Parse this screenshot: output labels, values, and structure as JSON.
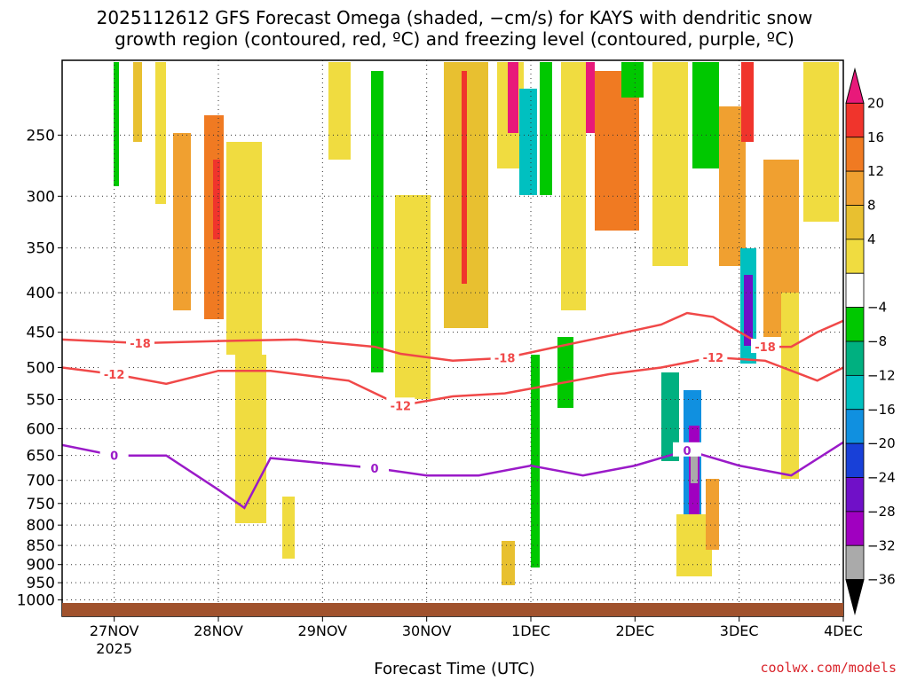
{
  "chart_data": {
    "type": "heatmap",
    "title_line1": "2025112612 GFS Forecast Omega (shaded, −cm/s) for KAYS with dendritic snow",
    "title_line2": "growth region (contoured, red, ºC) and freezing level (contoured, purple, ºC)",
    "xlabel": "Forecast Time (UTC)",
    "ylabel": "",
    "credit": "coolwx.com/models",
    "y_scale": "log-pressure (hPa), inverted",
    "y_ticks": [
      "250",
      "300",
      "350",
      "400",
      "450",
      "500",
      "550",
      "600",
      "650",
      "700",
      "750",
      "800",
      "850",
      "900",
      "950",
      "1000"
    ],
    "x_ticks": [
      "27NOV",
      "28NOV",
      "29NOV",
      "30NOV",
      "1DEC",
      "2DEC",
      "3DEC",
      "4DEC"
    ],
    "x_sublabel": "2025",
    "grid": true,
    "colorbar": {
      "labels": [
        "20",
        "16",
        "12",
        "8",
        "4",
        "−4",
        "−8",
        "−12",
        "−16",
        "−20",
        "−24",
        "−28",
        "−32",
        "−36"
      ],
      "colors": [
        "#e8197a",
        "#f0342c",
        "#f07a22",
        "#f0a030",
        "#e8c030",
        "#f0dc40",
        "#ffffff",
        "#00c800",
        "#00b080",
        "#00c0c0",
        "#1090e0",
        "#1840d8",
        "#7010c8",
        "#a000c0",
        "#aaaaaa",
        "#000000"
      ]
    },
    "contours": [
      {
        "name": "-18",
        "color": "#f04848",
        "x": [
          "2025-11-26 12",
          "2025-11-27 06",
          "2025-11-28 00",
          "2025-11-28 18",
          "2025-11-29 12",
          "2025-11-29 18",
          "2025-11-30 06",
          "2025-11-30 18",
          "2025-12-01 06",
          "2025-12-01 18",
          "2025-12-02 06",
          "2025-12-02 12",
          "2025-12-02 18",
          "2025-12-03 06",
          "2025-12-03 12",
          "2025-12-03 18",
          "2025-12-04 00"
        ],
        "y": [
          460,
          465,
          462,
          460,
          470,
          480,
          490,
          486,
          470,
          455,
          440,
          425,
          430,
          470,
          470,
          450,
          435
        ]
      },
      {
        "name": "-12",
        "color": "#f04848",
        "x": [
          "2025-11-26 12",
          "2025-11-27 00",
          "2025-11-27 12",
          "2025-11-28 00",
          "2025-11-28 12",
          "2025-11-29 06",
          "2025-11-29 18",
          "2025-11-30 06",
          "2025-11-30 18",
          "2025-12-01 06",
          "2025-12-01 18",
          "2025-12-02 06",
          "2025-12-02 18",
          "2025-12-03 06",
          "2025-12-03 18",
          "2025-12-04 00"
        ],
        "y": [
          500,
          510,
          525,
          505,
          505,
          520,
          560,
          545,
          540,
          525,
          510,
          500,
          485,
          490,
          520,
          500
        ]
      },
      {
        "name": "0",
        "color": "#9a1ac8",
        "x": [
          "2025-11-26 12",
          "2025-11-27 00",
          "2025-11-27 12",
          "2025-11-28 00",
          "2025-11-28 06",
          "2025-11-28 12",
          "2025-11-29 00",
          "2025-11-29 12",
          "2025-11-30 00",
          "2025-11-30 12",
          "2025-12-01 00",
          "2025-12-01 12",
          "2025-12-02 00",
          "2025-12-02 12",
          "2025-12-03 00",
          "2025-12-03 12",
          "2025-12-04 00"
        ],
        "y": [
          630,
          650,
          650,
          720,
          760,
          655,
          665,
          675,
          690,
          690,
          670,
          690,
          670,
          640,
          670,
          690,
          625
        ]
      }
    ]
  }
}
